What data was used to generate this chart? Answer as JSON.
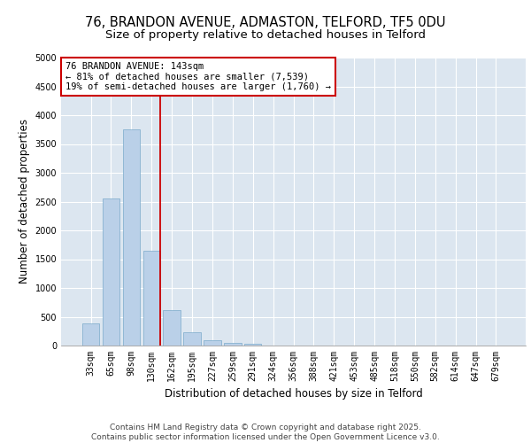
{
  "title_line1": "76, BRANDON AVENUE, ADMASTON, TELFORD, TF5 0DU",
  "title_line2": "Size of property relative to detached houses in Telford",
  "xlabel": "Distribution of detached houses by size in Telford",
  "ylabel": "Number of detached properties",
  "categories": [
    "33sqm",
    "65sqm",
    "98sqm",
    "130sqm",
    "162sqm",
    "195sqm",
    "227sqm",
    "259sqm",
    "291sqm",
    "324sqm",
    "356sqm",
    "388sqm",
    "421sqm",
    "453sqm",
    "485sqm",
    "518sqm",
    "550sqm",
    "582sqm",
    "614sqm",
    "647sqm",
    "679sqm"
  ],
  "values": [
    380,
    2550,
    3760,
    1650,
    620,
    235,
    90,
    45,
    30,
    0,
    0,
    0,
    0,
    0,
    0,
    0,
    0,
    0,
    0,
    0,
    0
  ],
  "bar_color": "#bad0e8",
  "bar_edge_color": "#7aaaca",
  "vline_color": "#cc0000",
  "annotation_text": "76 BRANDON AVENUE: 143sqm\n← 81% of detached houses are smaller (7,539)\n19% of semi-detached houses are larger (1,760) →",
  "annotation_box_facecolor": "#ffffff",
  "annotation_box_edgecolor": "#cc0000",
  "ylim": [
    0,
    5000
  ],
  "yticks": [
    0,
    500,
    1000,
    1500,
    2000,
    2500,
    3000,
    3500,
    4000,
    4500,
    5000
  ],
  "plot_bg_color": "#dce6f0",
  "fig_bg_color": "#ffffff",
  "grid_color": "#ffffff",
  "footnote": "Contains HM Land Registry data © Crown copyright and database right 2025.\nContains public sector information licensed under the Open Government Licence v3.0.",
  "title_fontsize": 10.5,
  "subtitle_fontsize": 9.5,
  "axis_label_fontsize": 8.5,
  "tick_fontsize": 7,
  "annotation_fontsize": 7.5,
  "footnote_fontsize": 6.5
}
